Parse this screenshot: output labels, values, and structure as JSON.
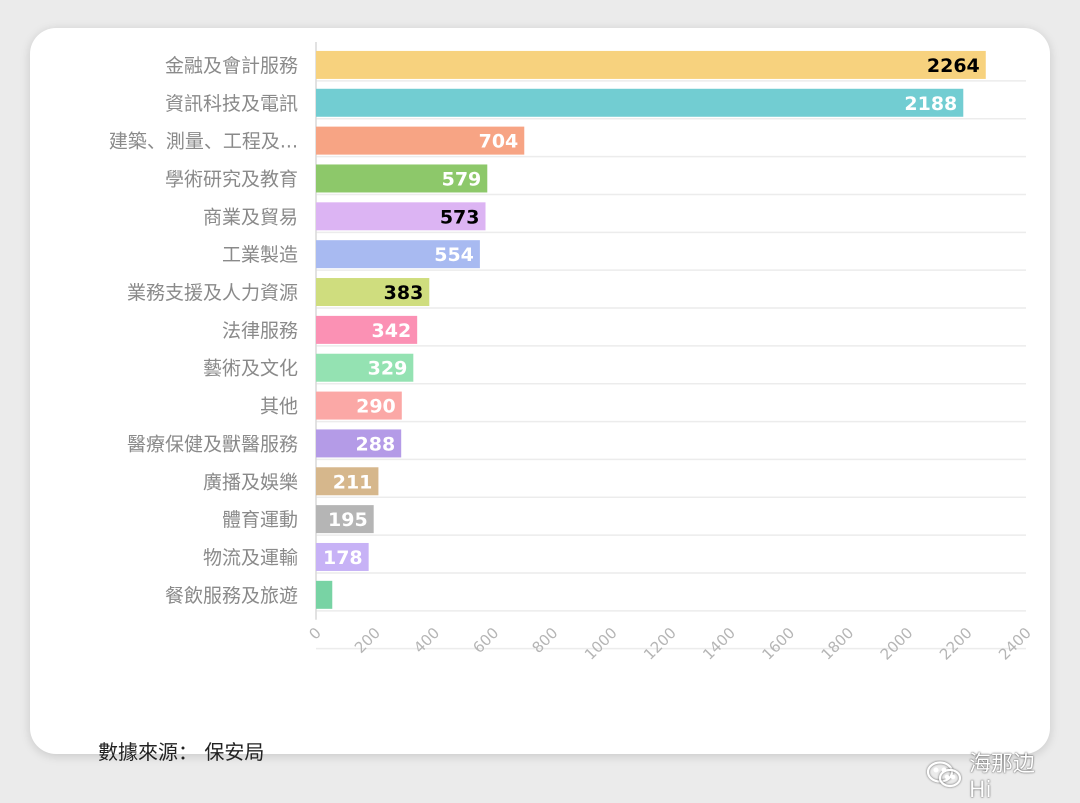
{
  "source_text": "數據來源： 保安局",
  "watermark_text": "海那边Hi",
  "chart_data": {
    "type": "bar",
    "orientation": "horizontal",
    "categories": [
      "金融及會計服務",
      "資訊科技及電訊",
      "建築、測量、工程及...",
      "學術研究及教育",
      "商業及貿易",
      "工業製造",
      "業務支援及人力資源",
      "法律服務",
      "藝術及文化",
      "其他",
      "醫療保健及獸醫服務",
      "廣播及娛樂",
      "體育運動",
      "物流及運輸",
      "餐飲服務及旅遊"
    ],
    "values": [
      2264,
      2188,
      704,
      579,
      573,
      554,
      383,
      342,
      329,
      290,
      288,
      211,
      195,
      178,
      55
    ],
    "value_labels": [
      "2264",
      "2188",
      "704",
      "579",
      "573",
      "554",
      "383",
      "342",
      "329",
      "290",
      "288",
      "211",
      "195",
      "178",
      ""
    ],
    "colors": [
      "#f7d27e",
      "#72cdd2",
      "#f7a484",
      "#8dc86a",
      "#dcb4f3",
      "#a8baf1",
      "#cfdd7e",
      "#fb91b4",
      "#94e2b2",
      "#fba8a6",
      "#b49be7",
      "#d6b78c",
      "#b5b5b5",
      "#c7b2f6",
      "#78d3a4"
    ],
    "label_colors": [
      "#000000",
      "#ffffff",
      "#ffffff",
      "#ffffff",
      "#000000",
      "#ffffff",
      "#000000",
      "#ffffff",
      "#ffffff",
      "#ffffff",
      "#ffffff",
      "#ffffff",
      "#ffffff",
      "#ffffff",
      "#ffffff"
    ],
    "xlim": [
      0,
      2400
    ],
    "xticks": [
      0,
      200,
      400,
      600,
      800,
      1000,
      1200,
      1400,
      1600,
      1800,
      2000,
      2200,
      2400
    ],
    "grid": true,
    "legend": "none",
    "title": "",
    "xlabel": "",
    "ylabel": ""
  }
}
